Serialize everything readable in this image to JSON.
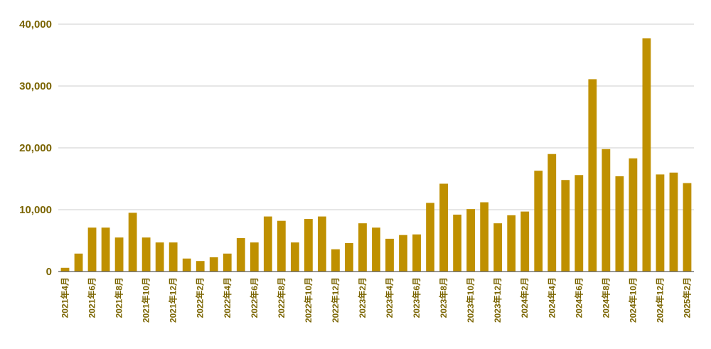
{
  "chart_data": {
    "type": "bar",
    "title": "",
    "xlabel": "",
    "ylabel": "",
    "ylim": [
      0,
      40000
    ],
    "yticks": [
      0,
      10000,
      20000,
      30000,
      40000
    ],
    "ytick_labels": [
      "0",
      "10,000",
      "20,000",
      "30,000",
      "40,000"
    ],
    "grid": true,
    "legend": "none",
    "bar_color": "#bf9000",
    "label_color": "#7a6400",
    "categories": [
      "2021年4月",
      "2021年5月",
      "2021年6月",
      "2021年7月",
      "2021年8月",
      "2021年9月",
      "2021年10月",
      "2021年11月",
      "2021年12月",
      "2022年1月",
      "2022年2月",
      "2022年3月",
      "2022年4月",
      "2022年5月",
      "2022年6月",
      "2022年7月",
      "2022年8月",
      "2022年9月",
      "2022年10月",
      "2022年11月",
      "2022年12月",
      "2023年1月",
      "2023年2月",
      "2023年3月",
      "2023年4月",
      "2023年5月",
      "2023年6月",
      "2023年7月",
      "2023年8月",
      "2023年9月",
      "2023年10月",
      "2023年11月",
      "2023年12月",
      "2024年1月",
      "2024年2月",
      "2024年3月",
      "2024年4月",
      "2024年5月",
      "2024年6月",
      "2024年7月",
      "2024年8月",
      "2024年9月",
      "2024年10月",
      "2024年11月",
      "2024年12月",
      "2025年1月",
      "2025年2月"
    ],
    "visible_tick_labels": [
      "2021年4月",
      "2021年6月",
      "2021年8月",
      "2021年10月",
      "2021年12月",
      "2022年2月",
      "2022年4月",
      "2022年6月",
      "2022年8月",
      "2022年10月",
      "2022年12月",
      "2023年2月",
      "2023年4月",
      "2023年6月",
      "2023年8月",
      "2023年10月",
      "2023年12月",
      "2024年2月",
      "2024年4月",
      "2024年6月",
      "2024年8月",
      "2024年10月",
      "2024年12月",
      "2025年2月"
    ],
    "values": [
      600,
      2900,
      7100,
      7100,
      5500,
      9500,
      5500,
      4700,
      4700,
      2100,
      1700,
      2300,
      2900,
      5400,
      4700,
      8900,
      8200,
      4700,
      8500,
      8900,
      3600,
      4600,
      7800,
      7100,
      5300,
      5900,
      6000,
      11100,
      14200,
      9200,
      10100,
      11200,
      7800,
      9100,
      9700,
      16300,
      19000,
      14800,
      15600,
      31100,
      19800,
      15400,
      18300,
      37700,
      15700,
      16000,
      14300
    ]
  }
}
